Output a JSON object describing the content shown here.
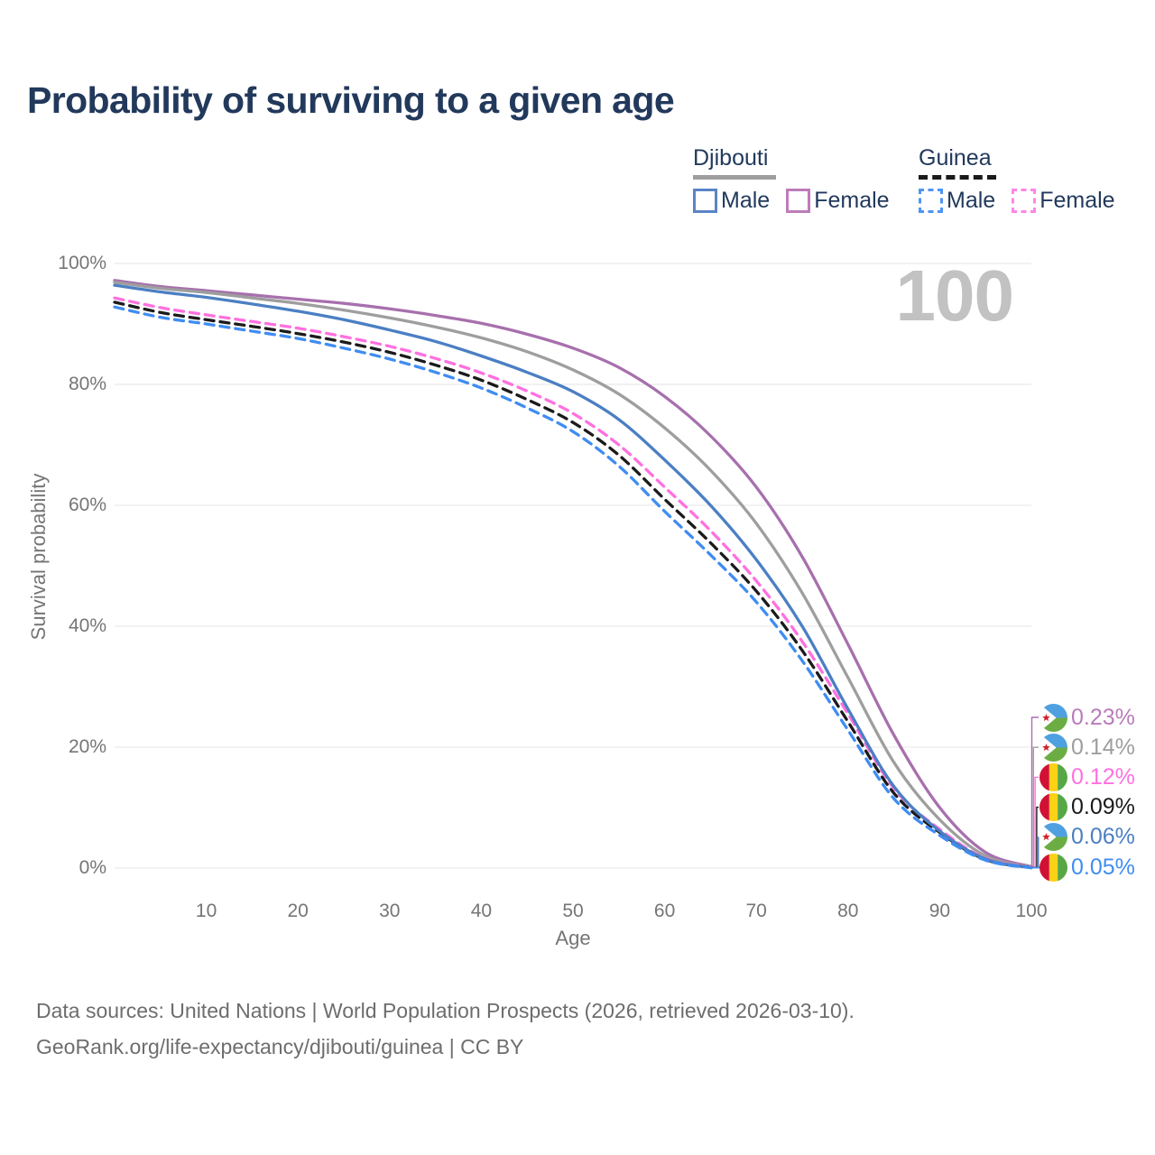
{
  "title": "Probability of surviving to a given age",
  "watermark_age": "100",
  "legend": {
    "groups": [
      {
        "country": "Djibouti",
        "line_style": "solid",
        "line_color": "#9e9e9e",
        "items": [
          {
            "label": "Male",
            "color": "#5b84c6",
            "dashed": false
          },
          {
            "label": "Female",
            "color": "#bd7cba",
            "dashed": false
          }
        ]
      },
      {
        "country": "Guinea",
        "line_style": "dashed",
        "line_color": "#1a1a1a",
        "items": [
          {
            "label": "Male",
            "color": "#4f94f5",
            "dashed": true
          },
          {
            "label": "Female",
            "color": "#ff85e8",
            "dashed": true
          }
        ]
      }
    ]
  },
  "flags": {
    "djibouti": {
      "blue": "#4fa0e0",
      "green": "#6cad43",
      "white": "#ffffff",
      "star_red": "#cf2027"
    },
    "guinea": {
      "red": "#d21034",
      "yellow": "#fcd116",
      "green": "#57a845"
    }
  },
  "footer": {
    "line1": "Data sources: United Nations | World Population Prospects (2026, retrieved 2026-03-10).",
    "line2": "GeoRank.org/life-expectancy/djibouti/guinea | CC BY"
  },
  "chart_data": {
    "type": "line",
    "title": "Probability of surviving to a given age",
    "xlabel": "Age",
    "ylabel": "Survival probability",
    "xlim": [
      0,
      100
    ],
    "ylim": [
      0,
      100
    ],
    "grid": "horizontal",
    "legend_position": "top-right",
    "x_ticks": [
      {
        "v": 10,
        "label": "10"
      },
      {
        "v": 20,
        "label": "20"
      },
      {
        "v": 30,
        "label": "30"
      },
      {
        "v": 40,
        "label": "40"
      },
      {
        "v": 50,
        "label": "50"
      },
      {
        "v": 60,
        "label": "60"
      },
      {
        "v": 70,
        "label": "70"
      },
      {
        "v": 80,
        "label": "80"
      },
      {
        "v": 90,
        "label": "90"
      },
      {
        "v": 100,
        "label": "100"
      }
    ],
    "y_ticks": [
      {
        "v": 0,
        "label": "0%"
      },
      {
        "v": 20,
        "label": "20%"
      },
      {
        "v": 40,
        "label": "40%"
      },
      {
        "v": 60,
        "label": "60%"
      },
      {
        "v": 80,
        "label": "80%"
      },
      {
        "v": 100,
        "label": "100%"
      }
    ],
    "ages": [
      0,
      5,
      10,
      15,
      20,
      25,
      30,
      35,
      40,
      45,
      50,
      55,
      60,
      65,
      70,
      75,
      80,
      85,
      90,
      95,
      100
    ],
    "series": [
      {
        "name": "Djibouti Female",
        "country": "Djibouti",
        "sex": "Female",
        "color": "#a770ad",
        "label_color": "#b87cbc",
        "dashed": false,
        "flag": "djibouti",
        "end_label": "0.23%",
        "values": [
          97.2,
          96.2,
          95.5,
          94.8,
          94.1,
          93.4,
          92.5,
          91.4,
          90.1,
          88.3,
          86.0,
          82.8,
          78.0,
          71.5,
          63.0,
          51.5,
          37.0,
          22.0,
          10.0,
          2.6,
          0.23
        ]
      },
      {
        "name": "Djibouti Both sexes",
        "country": "Djibouti",
        "sex": "Both",
        "color": "#9e9e9e",
        "label_color": "#9e9e9e",
        "dashed": false,
        "flag": "djibouti",
        "end_label": "0.14%",
        "values": [
          96.9,
          95.9,
          95.2,
          94.3,
          93.4,
          92.3,
          91.0,
          89.5,
          87.7,
          85.4,
          82.4,
          78.4,
          72.8,
          65.8,
          57.0,
          45.5,
          31.5,
          17.5,
          8.0,
          2.0,
          0.14
        ]
      },
      {
        "name": "Guinea Female",
        "country": "Guinea",
        "sex": "Female",
        "color": "#ff70e0",
        "label_color": "#ff70e0",
        "dashed": true,
        "flag": "guinea",
        "end_label": "0.12%",
        "values": [
          94.3,
          92.7,
          91.5,
          90.4,
          89.3,
          87.9,
          86.3,
          84.3,
          81.9,
          78.9,
          75.2,
          70.0,
          63.0,
          55.8,
          47.5,
          37.5,
          25.5,
          13.2,
          6.4,
          1.6,
          0.12
        ]
      },
      {
        "name": "Guinea Both sexes",
        "country": "Guinea",
        "sex": "Both",
        "color": "#1b1b1b",
        "label_color": "#1b1b1b",
        "dashed": true,
        "flag": "guinea",
        "end_label": "0.09%",
        "values": [
          93.6,
          91.9,
          90.7,
          89.6,
          88.4,
          87.0,
          85.3,
          83.2,
          80.7,
          77.5,
          73.7,
          68.3,
          61.0,
          53.8,
          45.8,
          36.0,
          24.2,
          12.4,
          5.9,
          1.4,
          0.09
        ]
      },
      {
        "name": "Djibouti Male",
        "country": "Djibouti",
        "sex": "Male",
        "color": "#4b7fc3",
        "label_color": "#4b7fc3",
        "dashed": false,
        "flag": "djibouti",
        "end_label": "0.06%",
        "values": [
          96.4,
          95.3,
          94.4,
          93.3,
          92.1,
          90.7,
          89.0,
          87.1,
          84.7,
          82.0,
          78.8,
          74.2,
          67.5,
          60.0,
          51.0,
          40.0,
          26.3,
          13.5,
          6.1,
          1.5,
          0.06
        ]
      },
      {
        "name": "Guinea Male",
        "country": "Guinea",
        "sex": "Male",
        "color": "#3f8df2",
        "label_color": "#3f8df2",
        "dashed": true,
        "flag": "guinea",
        "end_label": "0.05%",
        "values": [
          92.8,
          91.1,
          90.0,
          88.8,
          87.6,
          86.0,
          84.2,
          82.0,
          79.4,
          76.1,
          72.2,
          66.5,
          59.0,
          51.8,
          44.0,
          34.3,
          22.8,
          11.5,
          5.4,
          1.3,
          0.05
        ]
      }
    ]
  }
}
